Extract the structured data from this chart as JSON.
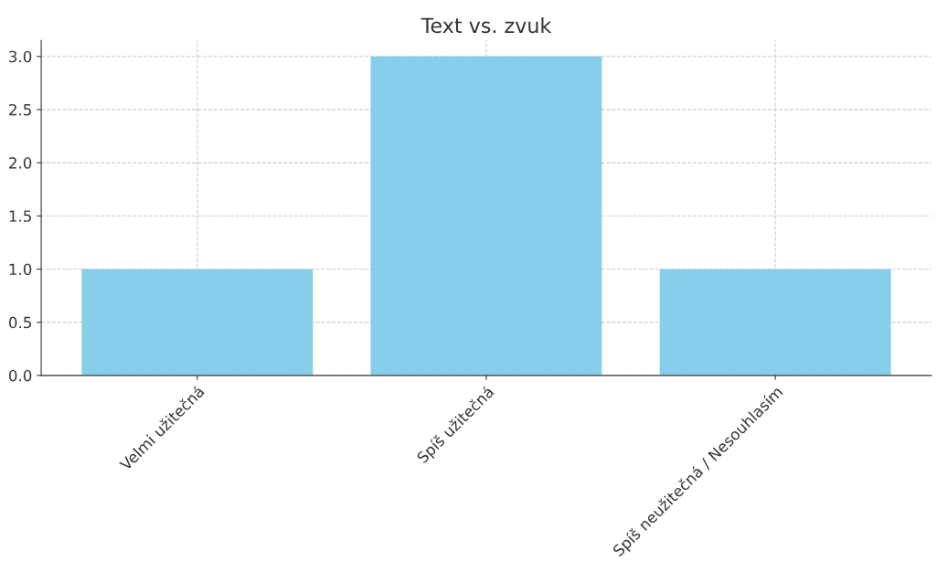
{
  "chart_data": {
    "type": "bar",
    "title": "Text vs. zvuk",
    "categories": [
      "Velmi užitečná",
      "Spíš užitečná",
      "Spíš neužitečná / Nesouhlasím"
    ],
    "values": [
      1,
      3,
      1
    ],
    "color": "#87ceeb",
    "ylim": [
      0,
      3.15
    ],
    "yticks": [
      {
        "value": 0,
        "label": "0.0"
      },
      {
        "value": 0.5,
        "label": "0.5"
      },
      {
        "value": 1,
        "label": "1.0"
      },
      {
        "value": 1.5,
        "label": "1.5"
      },
      {
        "value": 2,
        "label": "2.0"
      },
      {
        "value": 2.5,
        "label": "2.5"
      },
      {
        "value": 3,
        "label": "3.0"
      }
    ],
    "grid": true,
    "line_style": "dashed"
  }
}
